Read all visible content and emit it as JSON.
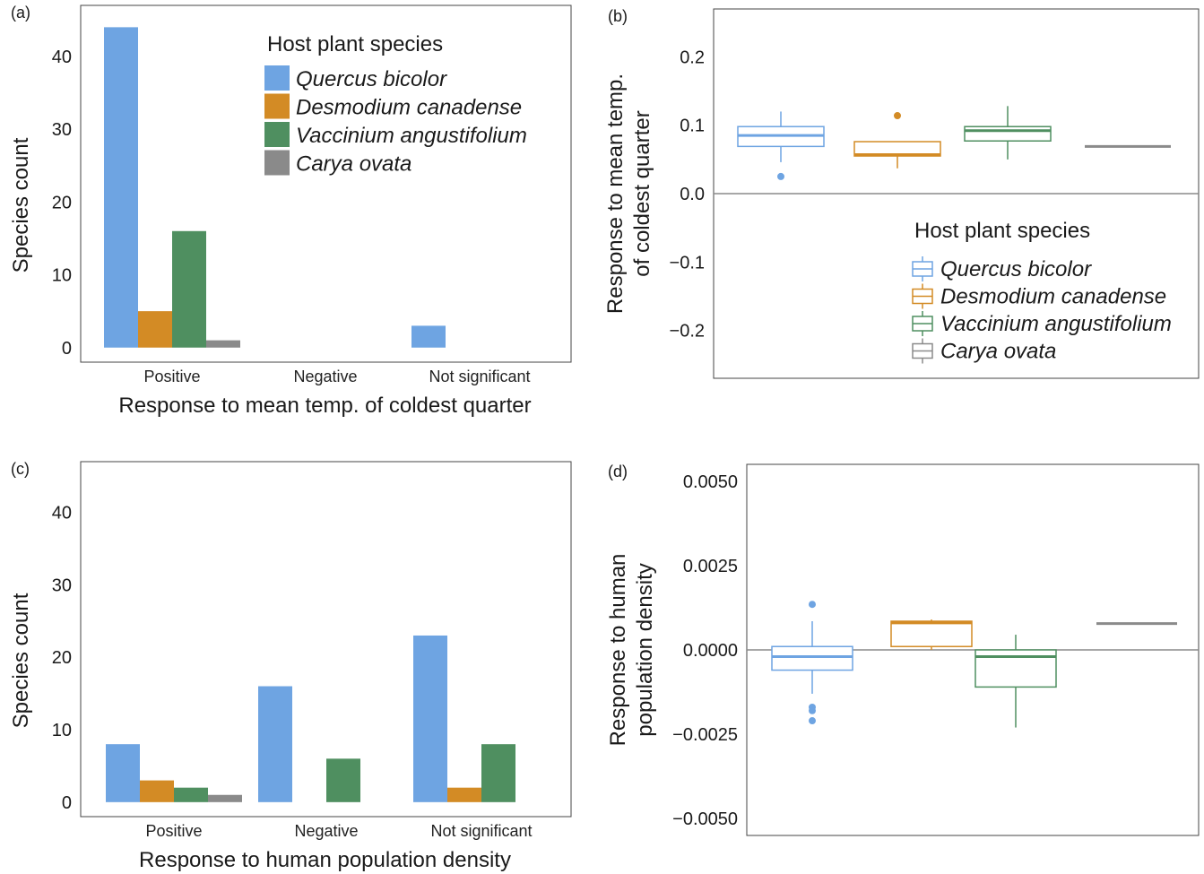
{
  "colors": {
    "Quercus bicolor": "#6ea4e2",
    "Desmodium canadense": "#d38b25",
    "Vaccinium angustifolium": "#4f8f60",
    "Carya ovata": "#8a8a8a"
  },
  "legend": {
    "title": "Host plant species",
    "items": [
      "Quercus bicolor",
      "Desmodium canadense",
      "Vaccinium angustifolium",
      "Carya ovata"
    ]
  },
  "chart_data": [
    {
      "panel": "(a)",
      "type": "bar",
      "categories": [
        "Positive",
        "Negative",
        "Not significant"
      ],
      "series": [
        {
          "name": "Quercus bicolor",
          "values": [
            44,
            0,
            3
          ]
        },
        {
          "name": "Desmodium canadense",
          "values": [
            5,
            0,
            0
          ]
        },
        {
          "name": "Vaccinium angustifolium",
          "values": [
            16,
            0,
            0
          ]
        },
        {
          "name": "Carya ovata",
          "values": [
            1,
            0,
            0
          ]
        }
      ],
      "xlabel": "Response to mean temp. of coldest quarter",
      "ylabel": "Species count",
      "ylim": [
        -2,
        47
      ],
      "yticks": [
        0,
        10,
        20,
        30,
        40
      ],
      "legend": "top-right"
    },
    {
      "panel": "(b)",
      "type": "box",
      "ylabel_lines": [
        "Response to mean temp.",
        "of coldest quarter"
      ],
      "ylim": [
        -0.27,
        0.27
      ],
      "yticks": [
        0.2,
        0.1,
        0.0,
        -0.1,
        -0.2
      ],
      "ytick_labels": [
        "0.2",
        "0.1",
        "0.0",
        "−0.1",
        "−0.2"
      ],
      "refline": 0,
      "boxes": [
        {
          "name": "Quercus bicolor",
          "q1": 0.069,
          "median": 0.085,
          "q3": 0.098,
          "whisker_low": 0.046,
          "whisker_high": 0.12,
          "outliers": [
            0.025
          ]
        },
        {
          "name": "Desmodium canadense",
          "q1": 0.055,
          "median": 0.057,
          "q3": 0.076,
          "whisker_low": 0.037,
          "whisker_high": 0.076,
          "outliers": [
            0.114
          ]
        },
        {
          "name": "Vaccinium angustifolium",
          "q1": 0.077,
          "median": 0.092,
          "q3": 0.098,
          "whisker_low": 0.05,
          "whisker_high": 0.128,
          "outliers": []
        },
        {
          "name": "Carya ovata",
          "q1": 0.069,
          "median": 0.069,
          "q3": 0.069,
          "whisker_low": 0.069,
          "whisker_high": 0.069,
          "outliers": []
        }
      ],
      "legend": "bottom-right"
    },
    {
      "panel": "(c)",
      "type": "bar",
      "categories": [
        "Positive",
        "Negative",
        "Not significant"
      ],
      "series": [
        {
          "name": "Quercus bicolor",
          "values": [
            8,
            16,
            23
          ]
        },
        {
          "name": "Desmodium canadense",
          "values": [
            3,
            0,
            2
          ]
        },
        {
          "name": "Vaccinium angustifolium",
          "values": [
            2,
            6,
            8
          ]
        },
        {
          "name": "Carya ovata",
          "values": [
            1,
            0,
            0
          ]
        }
      ],
      "xlabel": "Response to human population density",
      "ylabel": "Species count",
      "ylim": [
        -2,
        47
      ],
      "yticks": [
        0,
        10,
        20,
        30,
        40
      ]
    },
    {
      "panel": "(d)",
      "type": "box",
      "ylabel_lines": [
        "Response to human",
        "population density"
      ],
      "ylim": [
        -0.0055,
        0.0055
      ],
      "yticks": [
        0.005,
        0.0025,
        0,
        -0.0025,
        -0.005
      ],
      "ytick_labels": [
        "0.0050",
        "0.0025",
        "0.0000",
        "−0.0025",
        "−0.0050"
      ],
      "refline": 0,
      "boxes": [
        {
          "name": "Quercus bicolor",
          "q1": -0.0006,
          "median": -0.0002,
          "q3": 0.0001,
          "whisker_low": -0.0013,
          "whisker_high": 0.00085,
          "outliers": [
            0.00135,
            -0.0017,
            -0.0018,
            -0.0021
          ]
        },
        {
          "name": "Desmodium canadense",
          "q1": 0.0001,
          "median": 0.0008,
          "q3": 0.00085,
          "whisker_low": 0.0,
          "whisker_high": 0.0009,
          "outliers": []
        },
        {
          "name": "Vaccinium angustifolium",
          "q1": -0.0011,
          "median": -0.0002,
          "q3": 0.0,
          "whisker_low": -0.0023,
          "whisker_high": 0.00045,
          "outliers": []
        },
        {
          "name": "Carya ovata",
          "q1": 0.00078,
          "median": 0.00078,
          "q3": 0.00078,
          "whisker_low": 0.00078,
          "whisker_high": 0.00078,
          "outliers": []
        }
      ]
    }
  ]
}
